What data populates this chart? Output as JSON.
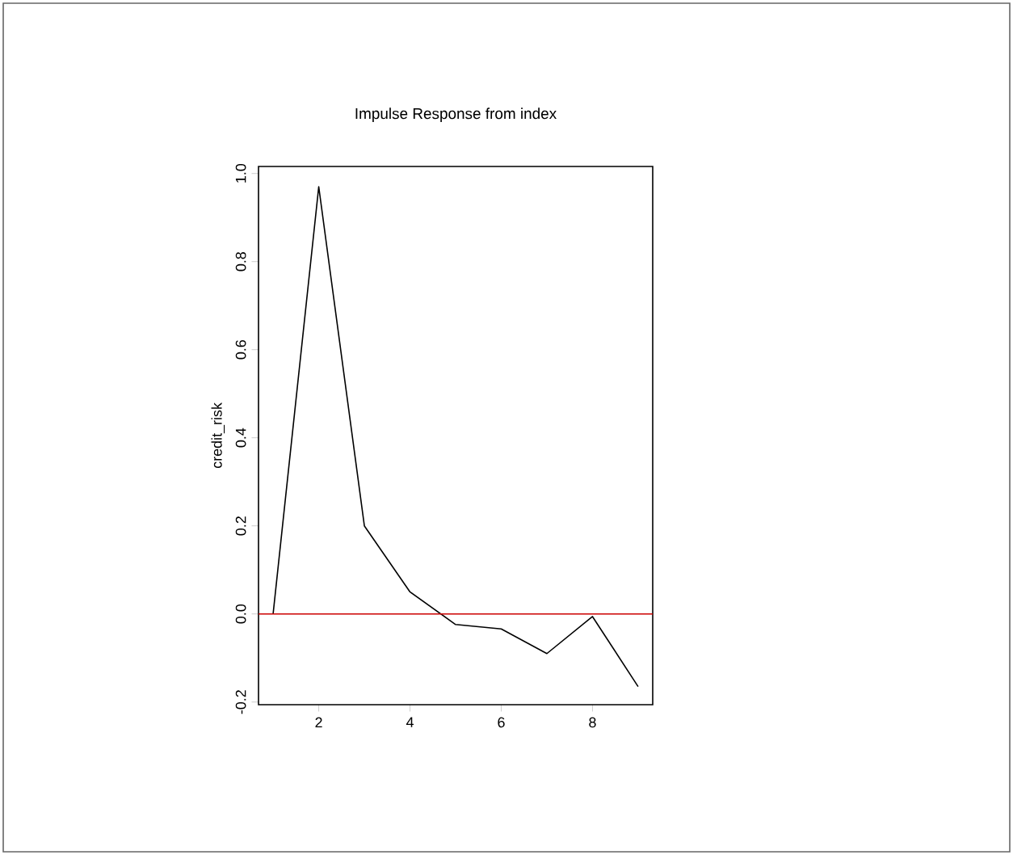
{
  "chart_data": {
    "type": "line",
    "title": "Impulse Response from index",
    "ylabel": "credit_risk",
    "x": [
      1,
      2,
      3,
      4,
      5,
      6,
      7,
      8,
      9
    ],
    "series": [
      {
        "color": "#000000",
        "values": [
          0,
          0.97,
          0.2,
          0.05,
          -0.024,
          -0.034,
          -0.09,
          -0.006,
          -0.165
        ]
      }
    ],
    "xlim": [
      0.68,
      9.32
    ],
    "ylim": [
      -0.206,
      1.016
    ],
    "xticks": [
      2,
      4,
      6,
      8
    ],
    "yticks": [
      -0.2,
      {
        "value": 0,
        "label": "0.0"
      },
      0.2,
      0.4,
      0.6,
      0.8,
      {
        "value": 1,
        "label": "1.0"
      }
    ],
    "ref_lines": [
      {
        "axis": "y",
        "value": 0,
        "color": "#cc0000"
      }
    ],
    "grid": false,
    "marker": "none",
    "line_style": "solid"
  }
}
